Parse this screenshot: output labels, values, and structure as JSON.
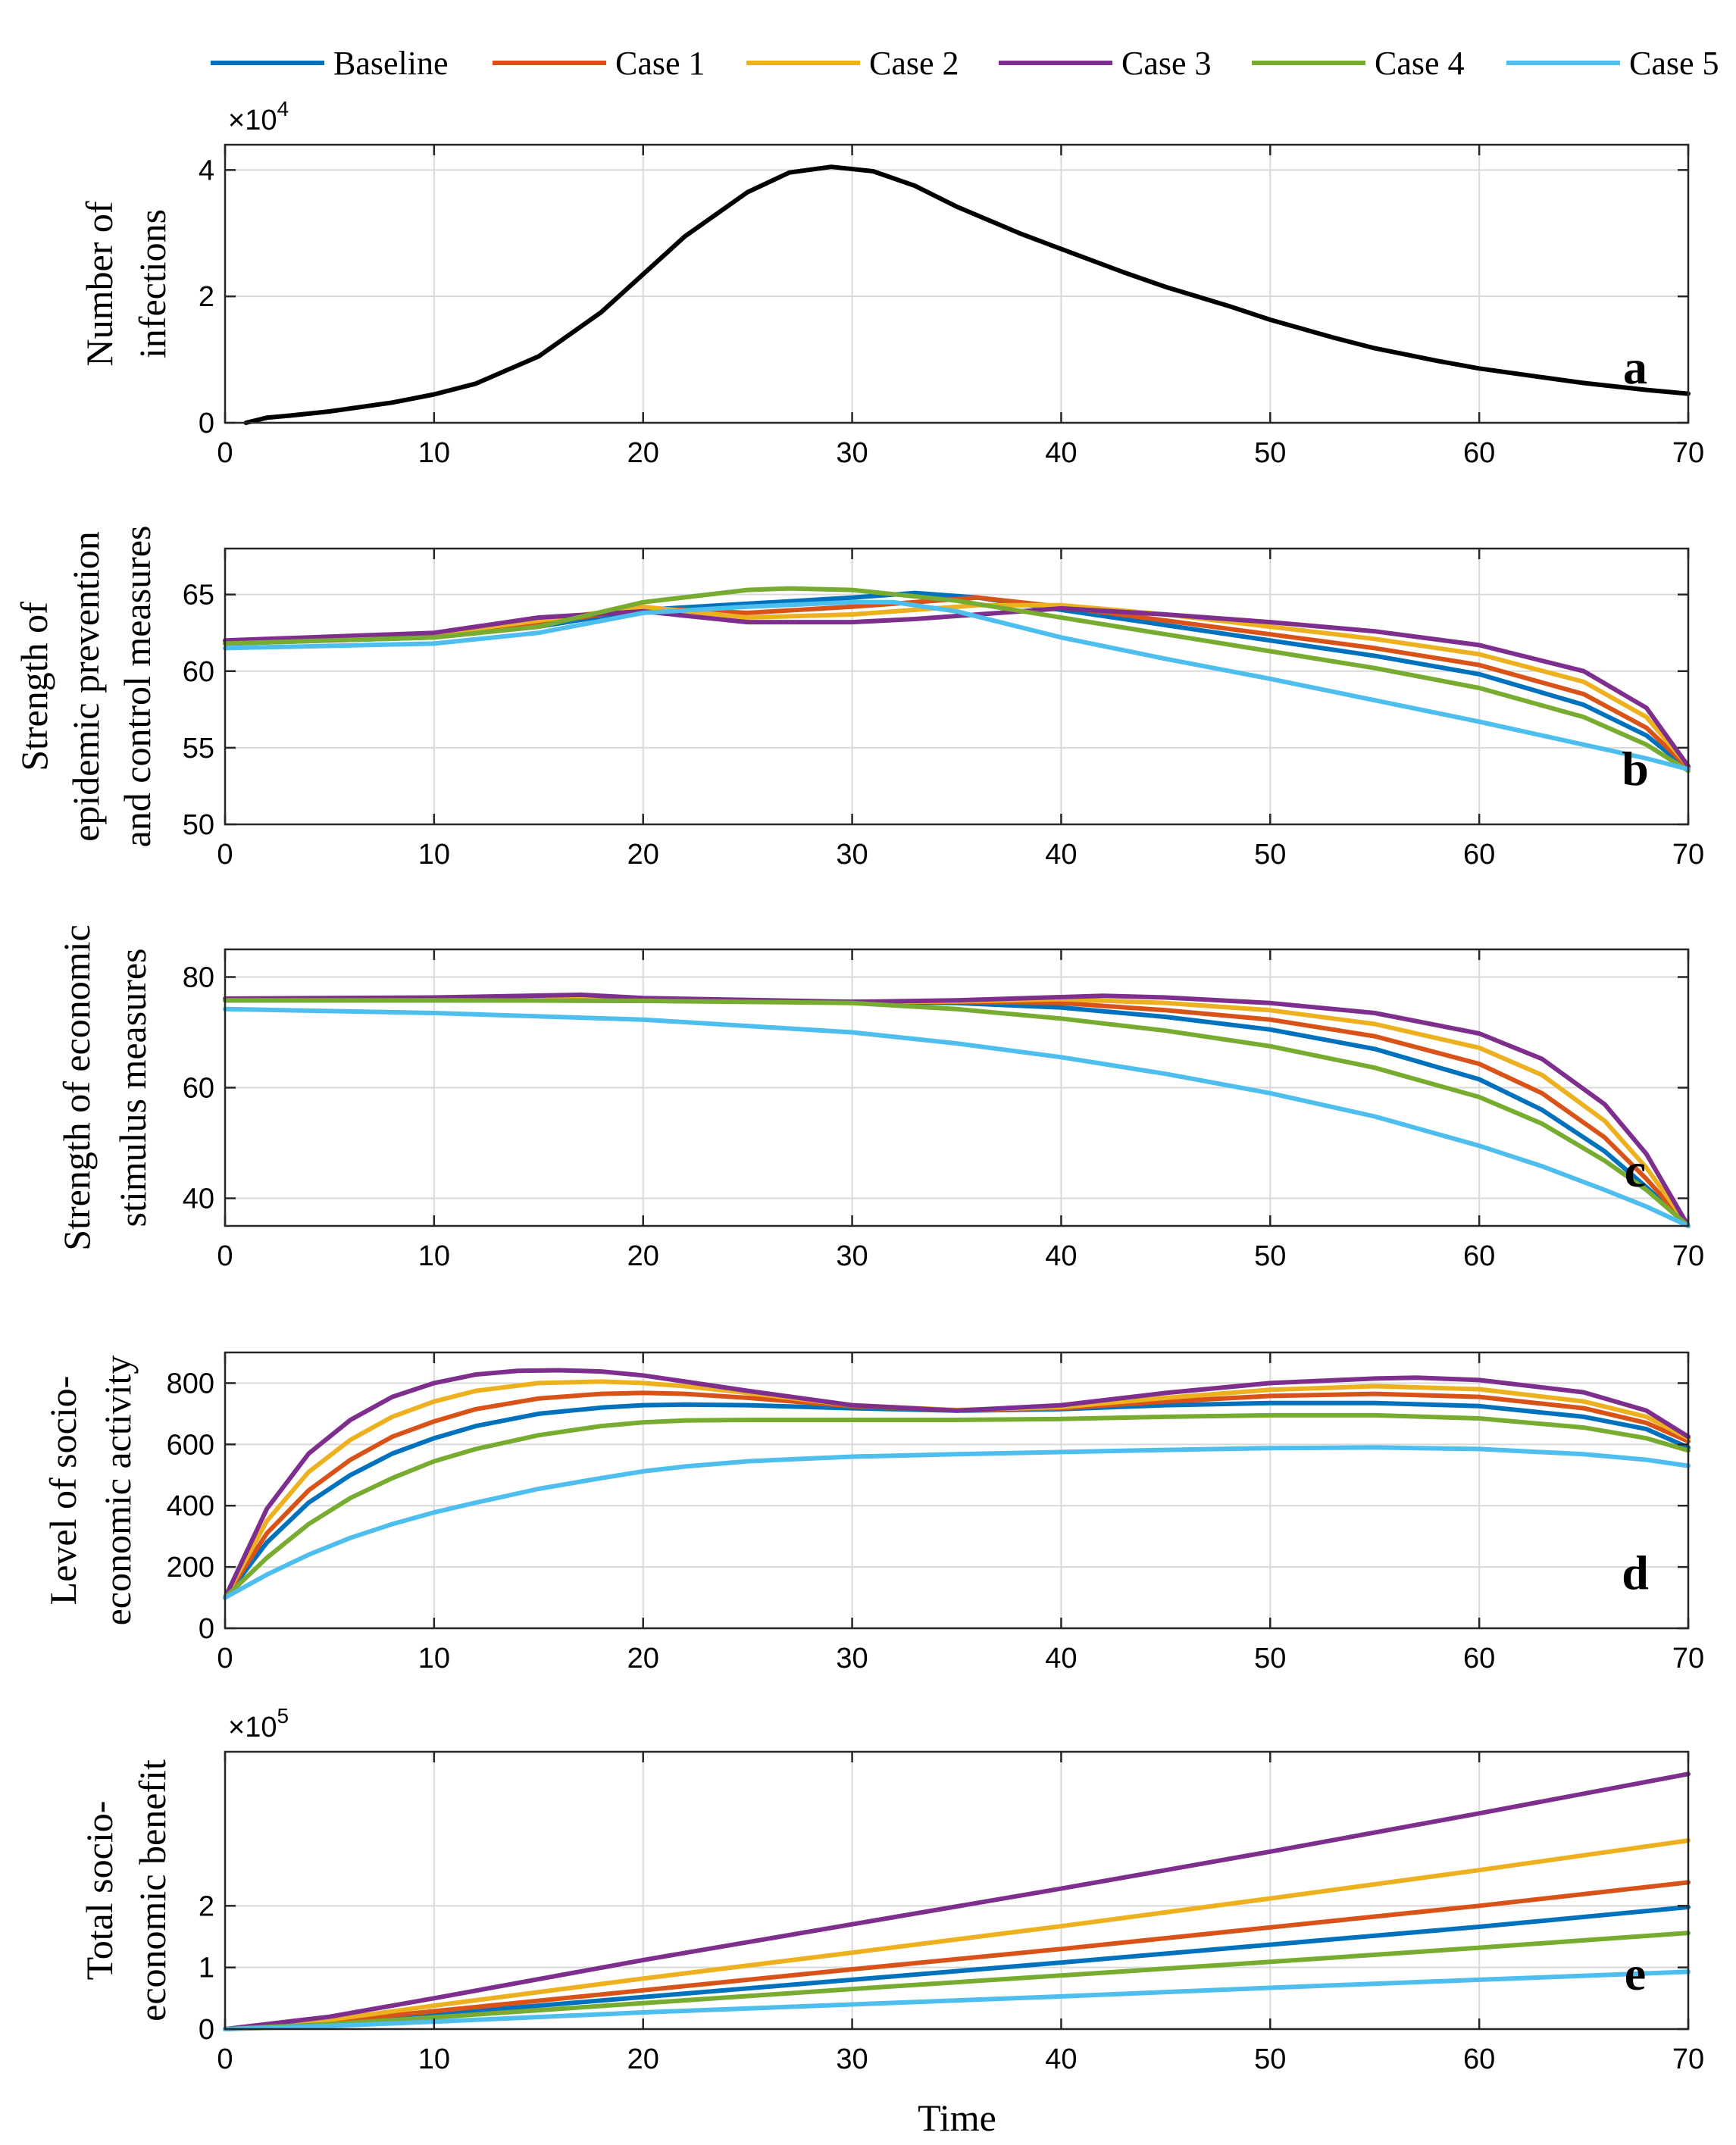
{
  "legend": {
    "entries": [
      "Baseline",
      "Case 1",
      "Case 2",
      "Case 3",
      "Case 4",
      "Case 5"
    ]
  },
  "colors": {
    "Baseline": "#0072BD",
    "Case 1": "#D95319",
    "Case 2": "#EDB120",
    "Case 3": "#7E2F8E",
    "Case 4": "#77AC30",
    "Case 5": "#4DBEEE",
    "single": "#000000",
    "grid": "#d9d9d9"
  },
  "xlabel": "Time",
  "chart_data": [
    {
      "type": "line",
      "panel": "a",
      "ylabel_lines": [
        "Number of",
        "infections"
      ],
      "exponent": {
        "base": "×10",
        "power": "4"
      },
      "xlim": [
        0,
        70
      ],
      "ylim": [
        0,
        4.4
      ],
      "xticks": [
        0,
        10,
        20,
        30,
        40,
        50,
        60,
        70
      ],
      "yticks": [
        0,
        2,
        4
      ],
      "series": [
        {
          "name": "Infections",
          "color_key": "single",
          "x": [
            1,
            2,
            3,
            5,
            8,
            10,
            12,
            15,
            18,
            20,
            22,
            25,
            27,
            29,
            31,
            33,
            35,
            38,
            40,
            43,
            45,
            48,
            50,
            53,
            55,
            58,
            60,
            63,
            65,
            68,
            70
          ],
          "y": [
            0.0,
            0.08,
            0.11,
            0.18,
            0.32,
            0.45,
            0.62,
            1.05,
            1.75,
            2.35,
            2.95,
            3.65,
            3.96,
            4.05,
            3.98,
            3.75,
            3.42,
            3.0,
            2.75,
            2.38,
            2.15,
            1.85,
            1.63,
            1.35,
            1.18,
            0.98,
            0.86,
            0.72,
            0.63,
            0.52,
            0.46
          ]
        }
      ]
    },
    {
      "type": "line",
      "panel": "b",
      "ylabel_lines": [
        "Strength of",
        "epidemic prevention",
        "and control measures"
      ],
      "xlim": [
        0,
        70
      ],
      "ylim": [
        50,
        68
      ],
      "xticks": [
        0,
        10,
        20,
        30,
        40,
        50,
        60,
        70
      ],
      "yticks": [
        50,
        55,
        60,
        65
      ],
      "series": [
        {
          "name": "Baseline",
          "x": [
            0,
            10,
            15,
            20,
            25,
            30,
            33,
            36,
            40,
            45,
            50,
            55,
            60,
            65,
            68,
            70
          ],
          "y": [
            61.8,
            62.2,
            62.9,
            64.0,
            64.4,
            64.8,
            65.1,
            64.8,
            64.0,
            63.0,
            62.0,
            61.0,
            59.8,
            57.8,
            55.8,
            53.6
          ]
        },
        {
          "name": "Case 1",
          "x": [
            0,
            10,
            15,
            20,
            25,
            30,
            33,
            36,
            40,
            45,
            50,
            55,
            60,
            65,
            68,
            70
          ],
          "y": [
            61.9,
            62.3,
            63.1,
            64.1,
            63.8,
            64.2,
            64.5,
            64.8,
            64.2,
            63.3,
            62.4,
            61.5,
            60.4,
            58.5,
            56.3,
            53.7
          ]
        },
        {
          "name": "Case 2",
          "x": [
            0,
            10,
            15,
            20,
            25,
            30,
            33,
            36,
            40,
            45,
            50,
            55,
            60,
            65,
            68,
            70
          ],
          "y": [
            61.9,
            62.4,
            63.3,
            64.2,
            63.5,
            63.7,
            64.0,
            64.3,
            64.3,
            63.7,
            62.9,
            62.1,
            61.1,
            59.3,
            57.0,
            53.8
          ]
        },
        {
          "name": "Case 3",
          "x": [
            0,
            10,
            15,
            20,
            25,
            30,
            33,
            36,
            40,
            45,
            50,
            55,
            60,
            65,
            68,
            70
          ],
          "y": [
            62.0,
            62.5,
            63.5,
            63.9,
            63.2,
            63.2,
            63.4,
            63.7,
            64.1,
            63.7,
            63.2,
            62.6,
            61.7,
            60.0,
            57.6,
            53.8
          ]
        },
        {
          "name": "Case 4",
          "x": [
            0,
            10,
            15,
            20,
            25,
            27,
            30,
            35,
            40,
            45,
            50,
            55,
            60,
            65,
            68,
            70
          ],
          "y": [
            61.8,
            62.2,
            62.9,
            64.5,
            65.3,
            65.4,
            65.3,
            64.6,
            63.5,
            62.4,
            61.3,
            60.2,
            58.9,
            57.0,
            55.2,
            53.5
          ]
        },
        {
          "name": "Case 5",
          "x": [
            0,
            10,
            15,
            20,
            25,
            30,
            32,
            35,
            40,
            45,
            50,
            55,
            60,
            65,
            68,
            70
          ],
          "y": [
            61.5,
            61.8,
            62.5,
            63.8,
            64.2,
            64.5,
            64.5,
            63.9,
            62.2,
            60.8,
            59.5,
            58.1,
            56.7,
            55.2,
            54.3,
            53.6
          ]
        }
      ]
    },
    {
      "type": "line",
      "panel": "c",
      "ylabel_lines": [
        "Strength of economic",
        "stimulus measures"
      ],
      "xlim": [
        0,
        70
      ],
      "ylim": [
        35,
        85
      ],
      "xticks": [
        0,
        10,
        20,
        30,
        40,
        50,
        60,
        70
      ],
      "yticks": [
        40,
        60,
        80
      ],
      "series": [
        {
          "name": "Baseline",
          "x": [
            0,
            10,
            20,
            30,
            35,
            40,
            45,
            50,
            55,
            60,
            63,
            66,
            68,
            70
          ],
          "y": [
            75.8,
            75.8,
            75.7,
            75.5,
            75.3,
            74.5,
            72.8,
            70.5,
            67.0,
            61.5,
            56.0,
            48.5,
            42.0,
            35.0
          ]
        },
        {
          "name": "Case 1",
          "x": [
            0,
            10,
            20,
            30,
            35,
            40,
            45,
            50,
            55,
            60,
            63,
            66,
            68,
            70
          ],
          "y": [
            75.9,
            76.0,
            75.8,
            75.5,
            75.5,
            75.3,
            74.0,
            72.3,
            69.3,
            64.3,
            59.0,
            51.0,
            43.5,
            35.0
          ]
        },
        {
          "name": "Case 2",
          "x": [
            0,
            10,
            20,
            30,
            35,
            40,
            45,
            50,
            55,
            60,
            63,
            66,
            68,
            70
          ],
          "y": [
            76.0,
            76.1,
            75.9,
            75.5,
            75.6,
            76.0,
            75.3,
            74.0,
            71.5,
            67.2,
            62.3,
            54.0,
            45.5,
            35.0
          ]
        },
        {
          "name": "Case 3",
          "x": [
            0,
            10,
            17,
            20,
            30,
            35,
            42,
            45,
            50,
            55,
            60,
            63,
            66,
            68,
            70
          ],
          "y": [
            76.1,
            76.3,
            76.8,
            76.2,
            75.5,
            75.8,
            76.6,
            76.3,
            75.3,
            73.5,
            69.8,
            65.2,
            57.0,
            48.0,
            35.0
          ]
        },
        {
          "name": "Case 4",
          "x": [
            0,
            10,
            20,
            30,
            35,
            40,
            45,
            50,
            55,
            60,
            63,
            66,
            68,
            70
          ],
          "y": [
            75.8,
            75.8,
            75.7,
            75.3,
            74.2,
            72.5,
            70.3,
            67.5,
            63.6,
            58.3,
            53.5,
            46.8,
            41.5,
            35.0
          ]
        },
        {
          "name": "Case 5",
          "x": [
            0,
            10,
            20,
            30,
            35,
            40,
            45,
            50,
            55,
            60,
            63,
            66,
            68,
            70
          ],
          "y": [
            74.2,
            73.5,
            72.3,
            70.0,
            68.0,
            65.5,
            62.5,
            59.0,
            54.8,
            49.5,
            45.8,
            41.5,
            38.5,
            35.0
          ]
        }
      ]
    },
    {
      "type": "line",
      "panel": "d",
      "ylabel_lines": [
        "Level of  socio-",
        "economic activity"
      ],
      "xlim": [
        0,
        70
      ],
      "ylim": [
        0,
        900
      ],
      "xticks": [
        0,
        10,
        20,
        30,
        40,
        50,
        60,
        70
      ],
      "yticks": [
        0,
        200,
        400,
        600,
        800
      ],
      "series": [
        {
          "name": "Baseline",
          "x": [
            0,
            2,
            4,
            6,
            8,
            10,
            12,
            15,
            18,
            20,
            22,
            25,
            30,
            35,
            40,
            45,
            50,
            55,
            60,
            65,
            68,
            70
          ],
          "y": [
            100,
            280,
            410,
            500,
            570,
            620,
            660,
            700,
            720,
            728,
            730,
            728,
            718,
            710,
            715,
            728,
            735,
            735,
            725,
            690,
            650,
            590
          ]
        },
        {
          "name": "Case 1",
          "x": [
            0,
            2,
            4,
            6,
            8,
            10,
            12,
            15,
            18,
            20,
            22,
            25,
            30,
            35,
            40,
            45,
            50,
            55,
            60,
            65,
            68,
            70
          ],
          "y": [
            100,
            310,
            450,
            550,
            625,
            675,
            715,
            750,
            765,
            768,
            765,
            752,
            725,
            712,
            718,
            740,
            758,
            765,
            755,
            718,
            670,
            610
          ]
        },
        {
          "name": "Case 2",
          "x": [
            0,
            2,
            4,
            6,
            8,
            10,
            12,
            15,
            18,
            20,
            22,
            25,
            30,
            35,
            40,
            45,
            50,
            55,
            60,
            65,
            68,
            70
          ],
          "y": [
            100,
            350,
            510,
            615,
            690,
            740,
            775,
            800,
            805,
            800,
            790,
            768,
            728,
            712,
            722,
            752,
            778,
            790,
            780,
            740,
            690,
            620
          ]
        },
        {
          "name": "Case 3",
          "x": [
            0,
            2,
            4,
            6,
            8,
            10,
            12,
            14,
            16,
            18,
            20,
            22,
            25,
            30,
            35,
            40,
            45,
            50,
            55,
            57,
            60,
            65,
            68,
            70
          ],
          "y": [
            100,
            390,
            570,
            680,
            755,
            800,
            828,
            840,
            842,
            838,
            825,
            805,
            775,
            728,
            710,
            728,
            768,
            800,
            815,
            818,
            810,
            770,
            710,
            625
          ]
        },
        {
          "name": "Case 4",
          "x": [
            0,
            2,
            4,
            6,
            8,
            10,
            12,
            15,
            18,
            20,
            22,
            25,
            30,
            35,
            40,
            45,
            50,
            55,
            60,
            65,
            68,
            70
          ],
          "y": [
            100,
            230,
            340,
            425,
            490,
            545,
            585,
            630,
            660,
            672,
            678,
            680,
            680,
            680,
            683,
            690,
            695,
            695,
            685,
            655,
            620,
            580
          ]
        },
        {
          "name": "Case 5",
          "x": [
            0,
            2,
            4,
            6,
            8,
            10,
            12,
            15,
            18,
            20,
            22,
            25,
            30,
            35,
            40,
            45,
            50,
            55,
            60,
            65,
            68,
            70
          ],
          "y": [
            100,
            175,
            240,
            295,
            340,
            378,
            410,
            455,
            490,
            512,
            528,
            545,
            560,
            568,
            575,
            582,
            588,
            590,
            585,
            568,
            550,
            530
          ]
        }
      ]
    },
    {
      "type": "line",
      "panel": "e",
      "ylabel_lines": [
        "Total socio-",
        "economic benefit"
      ],
      "exponent": {
        "base": "×10",
        "power": "5"
      },
      "xlim": [
        0,
        70
      ],
      "ylim": [
        0,
        4.5
      ],
      "xticks": [
        0,
        10,
        20,
        30,
        40,
        50,
        60,
        70
      ],
      "yticks": [
        0,
        1,
        2
      ],
      "series": [
        {
          "name": "Baseline",
          "x": [
            0,
            5,
            10,
            20,
            30,
            40,
            50,
            60,
            70
          ],
          "y": [
            0,
            0.1,
            0.24,
            0.52,
            0.8,
            1.08,
            1.37,
            1.66,
            1.98
          ]
        },
        {
          "name": "Case 1",
          "x": [
            0,
            5,
            10,
            20,
            30,
            40,
            50,
            60,
            70
          ],
          "y": [
            0,
            0.12,
            0.29,
            0.63,
            0.97,
            1.3,
            1.65,
            2.0,
            2.38
          ]
        },
        {
          "name": "Case 2",
          "x": [
            0,
            5,
            10,
            20,
            30,
            40,
            50,
            60,
            70
          ],
          "y": [
            0,
            0.15,
            0.38,
            0.82,
            1.24,
            1.67,
            2.12,
            2.58,
            3.06
          ]
        },
        {
          "name": "Case 3",
          "x": [
            0,
            5,
            10,
            20,
            30,
            40,
            50,
            60,
            70
          ],
          "y": [
            0,
            0.2,
            0.5,
            1.12,
            1.7,
            2.28,
            2.88,
            3.5,
            4.14
          ]
        },
        {
          "name": "Case 4",
          "x": [
            0,
            5,
            10,
            20,
            30,
            40,
            50,
            60,
            70
          ],
          "y": [
            0,
            0.08,
            0.19,
            0.42,
            0.65,
            0.87,
            1.09,
            1.32,
            1.56
          ]
        },
        {
          "name": "Case 5",
          "x": [
            0,
            5,
            10,
            20,
            30,
            40,
            50,
            60,
            70
          ],
          "y": [
            0,
            0.05,
            0.12,
            0.27,
            0.4,
            0.53,
            0.67,
            0.8,
            0.93
          ]
        }
      ]
    }
  ]
}
